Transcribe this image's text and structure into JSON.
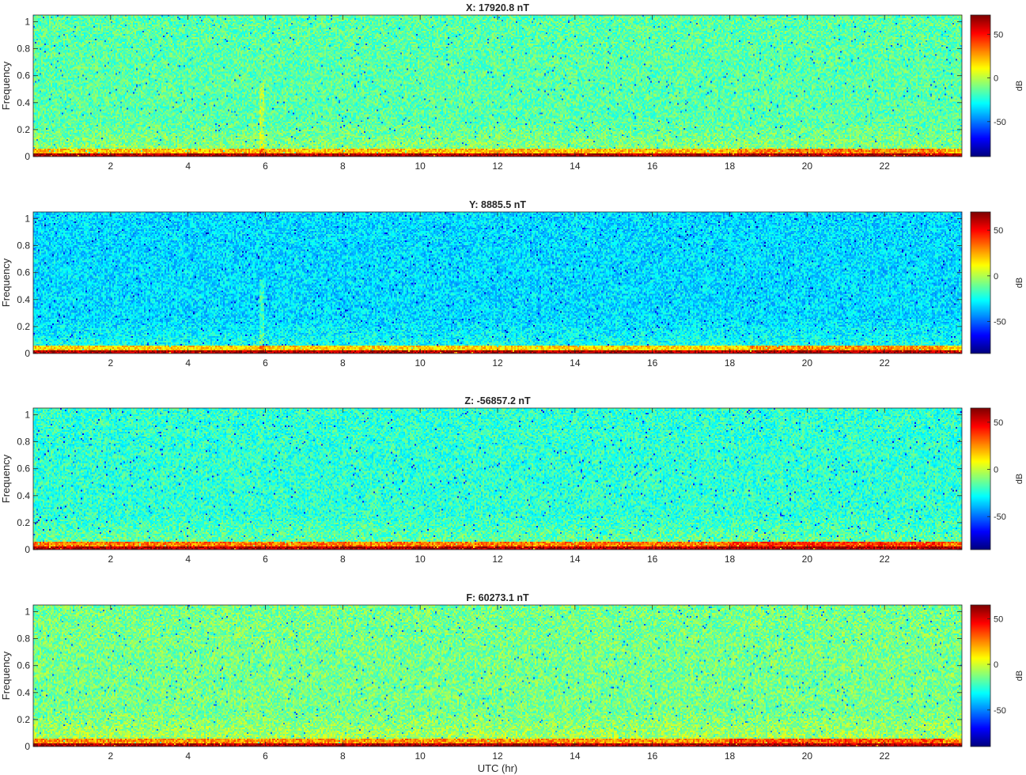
{
  "chart_data": [
    {
      "type": "heatmap",
      "title": "X: 17920.8 nT",
      "xlabel": "",
      "ylabel": "Frequency",
      "colorbar_label": "dB",
      "xlim": [
        0,
        24
      ],
      "ylim": [
        0,
        1.05
      ],
      "x_ticks": [
        2,
        4,
        6,
        8,
        10,
        12,
        14,
        16,
        18,
        20,
        22
      ],
      "y_ticks": [
        0,
        0.2,
        0.4,
        0.6,
        0.8,
        1
      ],
      "clim": [
        -90,
        72
      ],
      "colorbar_ticks": [
        -50,
        0,
        50
      ],
      "colormap": "jet",
      "background_db": -15,
      "low_band_db": 22,
      "floor_db": 65,
      "spike_hr": 5.9,
      "highlight_hr": [
        18.2,
        23.5
      ]
    },
    {
      "type": "heatmap",
      "title": "Y: 8885.5 nT",
      "xlabel": "",
      "ylabel": "Frequency",
      "colorbar_label": "dB",
      "xlim": [
        0,
        24
      ],
      "ylim": [
        0,
        1.05
      ],
      "x_ticks": [
        2,
        4,
        6,
        8,
        10,
        12,
        14,
        16,
        18,
        20,
        22
      ],
      "y_ticks": [
        0,
        0.2,
        0.4,
        0.6,
        0.8,
        1
      ],
      "clim": [
        -85,
        70
      ],
      "colorbar_ticks": [
        -50,
        0,
        50
      ],
      "colormap": "jet",
      "background_db": -32,
      "low_band_db": 18,
      "floor_db": 62,
      "spike_hr": 5.9,
      "highlight_hr": [
        18.5,
        23.5
      ]
    },
    {
      "type": "heatmap",
      "title": "Z: -56857.2 nT",
      "xlabel": "",
      "ylabel": "Frequency",
      "colorbar_label": "dB",
      "xlim": [
        0,
        24
      ],
      "ylim": [
        0,
        1.05
      ],
      "x_ticks": [
        2,
        4,
        6,
        8,
        10,
        12,
        14,
        16,
        18,
        20,
        22
      ],
      "y_ticks": [
        0,
        0.2,
        0.4,
        0.6,
        0.8,
        1
      ],
      "clim": [
        -85,
        65
      ],
      "colorbar_ticks": [
        -50,
        0,
        50
      ],
      "colormap": "jet",
      "background_db": -22,
      "low_band_db": 28,
      "floor_db": 58,
      "spike_hr": null,
      "highlight_hr": [
        18.0,
        23.5
      ]
    },
    {
      "type": "heatmap",
      "title": "F: 60273.1 nT",
      "xlabel": "UTC (hr)",
      "ylabel": "Frequency",
      "colorbar_label": "dB",
      "xlim": [
        0,
        24
      ],
      "ylim": [
        0,
        1.05
      ],
      "x_ticks": [
        2,
        4,
        6,
        8,
        10,
        12,
        14,
        16,
        18,
        20,
        22
      ],
      "y_ticks": [
        0,
        0.2,
        0.4,
        0.6,
        0.8,
        1
      ],
      "clim": [
        -90,
        65
      ],
      "colorbar_ticks": [
        -50,
        0,
        50
      ],
      "colormap": "jet",
      "background_db": -14,
      "low_band_db": 24,
      "floor_db": 58,
      "spike_hr": null,
      "highlight_hr": [
        18.0,
        23.5
      ]
    }
  ]
}
